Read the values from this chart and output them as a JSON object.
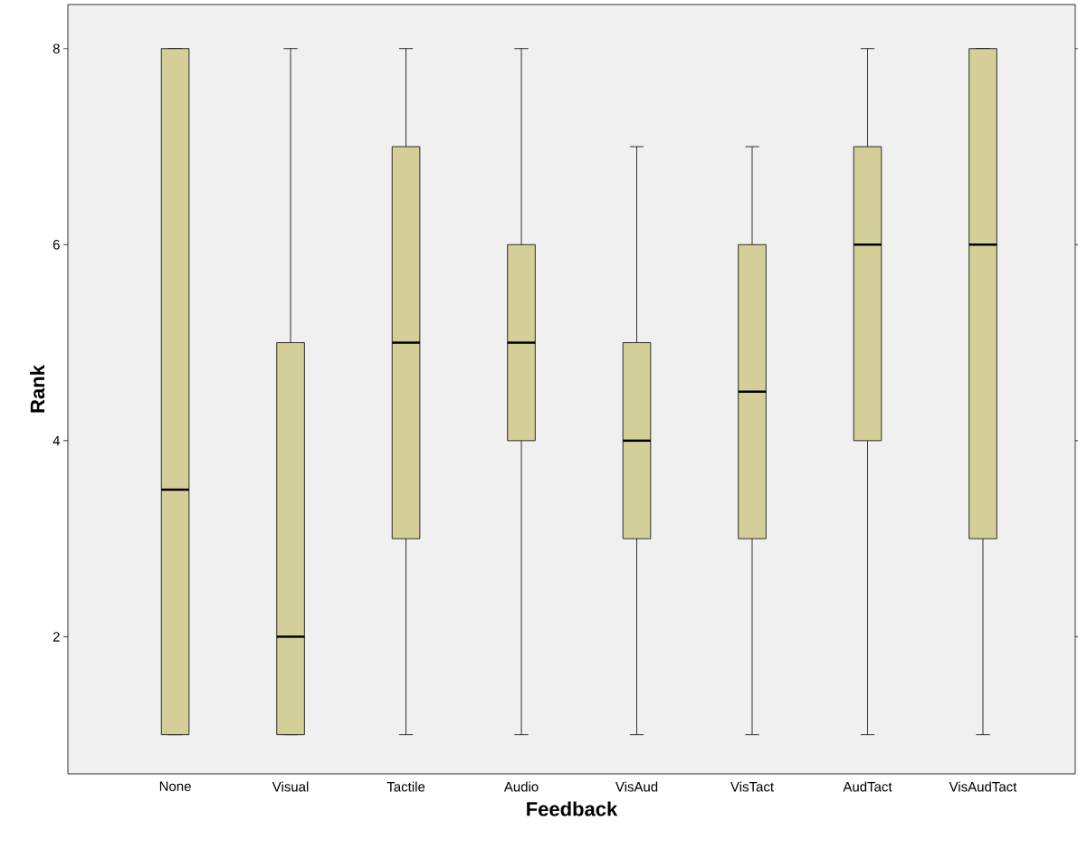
{
  "chart_data": {
    "type": "box",
    "xlabel": "Feedback",
    "ylabel": "Rank",
    "categories": [
      "None",
      "Visual",
      "Tactile",
      "Audio",
      "VisAud",
      "VisTact",
      "AudTact",
      "VisAudTact"
    ],
    "boxes": [
      {
        "low": 1,
        "q1": 1,
        "median": 3.5,
        "q3": 8,
        "high": 8
      },
      {
        "low": 1,
        "q1": 1,
        "median": 2,
        "q3": 5,
        "high": 8
      },
      {
        "low": 1,
        "q1": 3,
        "median": 5,
        "q3": 7,
        "high": 8
      },
      {
        "low": 1,
        "q1": 4,
        "median": 5,
        "q3": 6,
        "high": 8
      },
      {
        "low": 1,
        "q1": 3,
        "median": 4,
        "q3": 5,
        "high": 7
      },
      {
        "low": 1,
        "q1": 3,
        "median": 4.5,
        "q3": 6,
        "high": 7
      },
      {
        "low": 1,
        "q1": 4,
        "median": 6,
        "q3": 7,
        "high": 8
      },
      {
        "low": 1,
        "q1": 3,
        "median": 6,
        "q3": 8,
        "high": 8
      }
    ],
    "color": "#d4cf99",
    "ylim": [
      0.6,
      8.45
    ],
    "yticks": [
      2,
      4,
      6,
      8
    ]
  }
}
